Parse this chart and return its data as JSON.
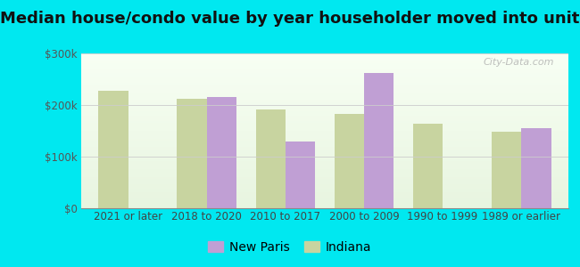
{
  "title": "Median house/condo value by year householder moved into unit",
  "categories": [
    "2021 or later",
    "2018 to 2020",
    "2010 to 2017",
    "2000 to 2009",
    "1990 to 1999",
    "1989 or earlier"
  ],
  "new_paris": [
    null,
    215000,
    130000,
    262000,
    null,
    155000
  ],
  "indiana": [
    228000,
    212000,
    192000,
    183000,
    163000,
    148000
  ],
  "new_paris_color": "#c09fd4",
  "indiana_color": "#c8d4a0",
  "background_outer": "#00e8f0",
  "ylim": [
    0,
    300000
  ],
  "yticks": [
    0,
    100000,
    200000,
    300000
  ],
  "ytick_labels": [
    "$0",
    "$100k",
    "$200k",
    "$300k"
  ],
  "legend_labels": [
    "New Paris",
    "Indiana"
  ],
  "bar_width": 0.38,
  "watermark": "City-Data.com",
  "title_fontsize": 13,
  "tick_fontsize": 8.5,
  "legend_fontsize": 10
}
